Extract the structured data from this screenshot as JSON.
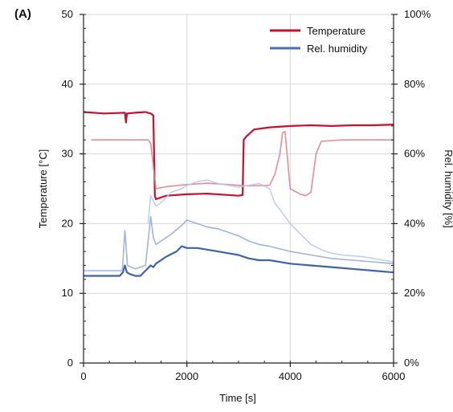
{
  "panel_label": "(A)",
  "chart_data": {
    "type": "line",
    "xlabel": "Time [s]",
    "ylabel_left": "Temperature [°C]",
    "ylabel_right": "Rel. humidity [%]",
    "xlim": [
      0,
      6000
    ],
    "ylim_left": [
      0,
      50
    ],
    "ylim_right": [
      0,
      100
    ],
    "x_ticks": [
      0,
      2000,
      4000,
      6000
    ],
    "x_tick_labels": [
      "0",
      "2000",
      "4000",
      "6000"
    ],
    "y_left_ticks": [
      0,
      10,
      20,
      30,
      40,
      50
    ],
    "y_left_tick_labels": [
      "0",
      "10",
      "20",
      "30",
      "40",
      "50"
    ],
    "y_right_ticks": [
      0,
      20,
      40,
      60,
      80,
      100
    ],
    "y_right_tick_labels": [
      "0%",
      "20%",
      "40%",
      "60%",
      "80%",
      "100%"
    ],
    "grid": true,
    "legend": {
      "placement": "top-right",
      "entries": [
        {
          "name": "Temperature",
          "color": "#c8102e"
        },
        {
          "name": "Rel. humidity",
          "color": "#4a6fb5"
        }
      ]
    },
    "series": [
      {
        "name": "Temperature",
        "color": "#c8102e",
        "opacity": 1.0,
        "axis": "left",
        "x": [
          0,
          400,
          800,
          820,
          840,
          1000,
          1200,
          1300,
          1350,
          1380,
          1400,
          1600,
          2000,
          2400,
          2800,
          3000,
          3080,
          3100,
          3150,
          3300,
          3600,
          4000,
          4400,
          4800,
          5200,
          5600,
          6000
        ],
        "y": [
          36.0,
          35.8,
          35.9,
          34.5,
          35.8,
          35.9,
          36.0,
          35.8,
          35.5,
          24.0,
          23.5,
          24.0,
          24.2,
          24.3,
          24.1,
          24.0,
          24.1,
          32.0,
          32.5,
          33.5,
          33.8,
          34.0,
          34.1,
          34.0,
          34.1,
          34.1,
          34.2
        ]
      },
      {
        "name": "",
        "color": "#e07a85",
        "opacity": 0.85,
        "axis": "left",
        "x": [
          150,
          400,
          800,
          1000,
          1250,
          1300,
          1400,
          1600,
          2000,
          2400,
          2800,
          3200,
          3600,
          3700,
          3800,
          3850,
          3900,
          4000,
          4200,
          4300,
          4400,
          4500,
          4600,
          5000,
          5500,
          6000
        ],
        "y": [
          32.0,
          32.0,
          32.0,
          32.0,
          32.0,
          31.5,
          25.0,
          25.3,
          25.6,
          25.8,
          25.6,
          25.4,
          25.5,
          27.0,
          30.0,
          33.0,
          33.2,
          25.0,
          24.2,
          24.0,
          24.5,
          30.0,
          31.8,
          32.0,
          32.0,
          32.0
        ]
      },
      {
        "name": "Rel. humidity",
        "color": "#3e63a8",
        "opacity": 1.0,
        "axis": "right",
        "x": [
          0,
          400,
          700,
          760,
          800,
          840,
          900,
          1000,
          1100,
          1200,
          1300,
          1350,
          1400,
          1600,
          1800,
          1900,
          2000,
          2200,
          2400,
          2600,
          2800,
          3000,
          3200,
          3400,
          3600,
          4000,
          4400,
          4800,
          5200,
          5600,
          6000
        ],
        "y": [
          25.0,
          25.0,
          25.0,
          26.0,
          28.0,
          26.0,
          25.5,
          25.0,
          25.0,
          26.5,
          28.0,
          27.5,
          28.5,
          30.5,
          32.0,
          33.5,
          33.0,
          33.0,
          32.5,
          32.0,
          31.5,
          31.0,
          30.0,
          29.5,
          29.5,
          28.5,
          28.0,
          27.5,
          27.0,
          26.5,
          26.0
        ]
      },
      {
        "name": "",
        "color": "#8aa2d1",
        "opacity": 0.8,
        "axis": "right",
        "x": [
          0,
          400,
          750,
          800,
          850,
          1000,
          1200,
          1300,
          1350,
          1400,
          1500,
          1700,
          1900,
          2000,
          2200,
          2400,
          2600,
          2800,
          3000,
          3200,
          3400,
          3600,
          4000,
          4400,
          4800,
          5200,
          5600,
          6000
        ],
        "y": [
          26.5,
          26.5,
          26.5,
          38.0,
          28.0,
          27.0,
          28.0,
          42.0,
          36.0,
          34.0,
          35.0,
          37.0,
          39.5,
          41.0,
          40.0,
          39.0,
          38.5,
          37.5,
          36.5,
          35.0,
          34.0,
          33.5,
          32.0,
          31.0,
          30.0,
          29.5,
          29.0,
          28.5
        ]
      },
      {
        "name": "",
        "color": "#b7c6e6",
        "opacity": 0.85,
        "axis": "right",
        "x": [
          1250,
          1300,
          1400,
          1500,
          1700,
          1900,
          2000,
          2200,
          2400,
          2600,
          2800,
          3000,
          3200,
          3400,
          3600,
          3700,
          3800,
          3900,
          4000,
          4200,
          4400,
          4600,
          4800,
          5000,
          5400,
          5800,
          6000
        ],
        "y": [
          40.0,
          48.0,
          45.0,
          46.0,
          49.0,
          50.0,
          51.0,
          52.0,
          52.5,
          51.5,
          51.0,
          50.5,
          51.0,
          51.5,
          50.0,
          46.0,
          44.0,
          42.0,
          40.0,
          37.0,
          34.0,
          32.5,
          31.5,
          31.0,
          30.5,
          29.5,
          29.0
        ]
      }
    ]
  }
}
